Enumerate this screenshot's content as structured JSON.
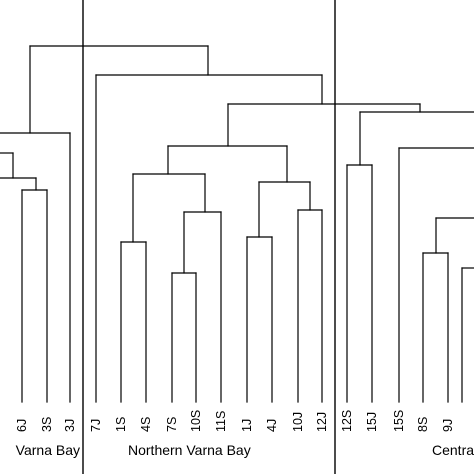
{
  "leaves": [
    "6J",
    "3S",
    "3J",
    "7J",
    "1S",
    "4S",
    "7S",
    "10S",
    "11S",
    "1J",
    "4J",
    "10J",
    "12J",
    "12S",
    "15J",
    "15S",
    "8S",
    "9J"
  ],
  "groups": [
    "Varna Bay",
    "Northern Varna Bay",
    "Centra"
  ],
  "colors": {
    "ink": "#000000",
    "background": "#ffffff"
  }
}
